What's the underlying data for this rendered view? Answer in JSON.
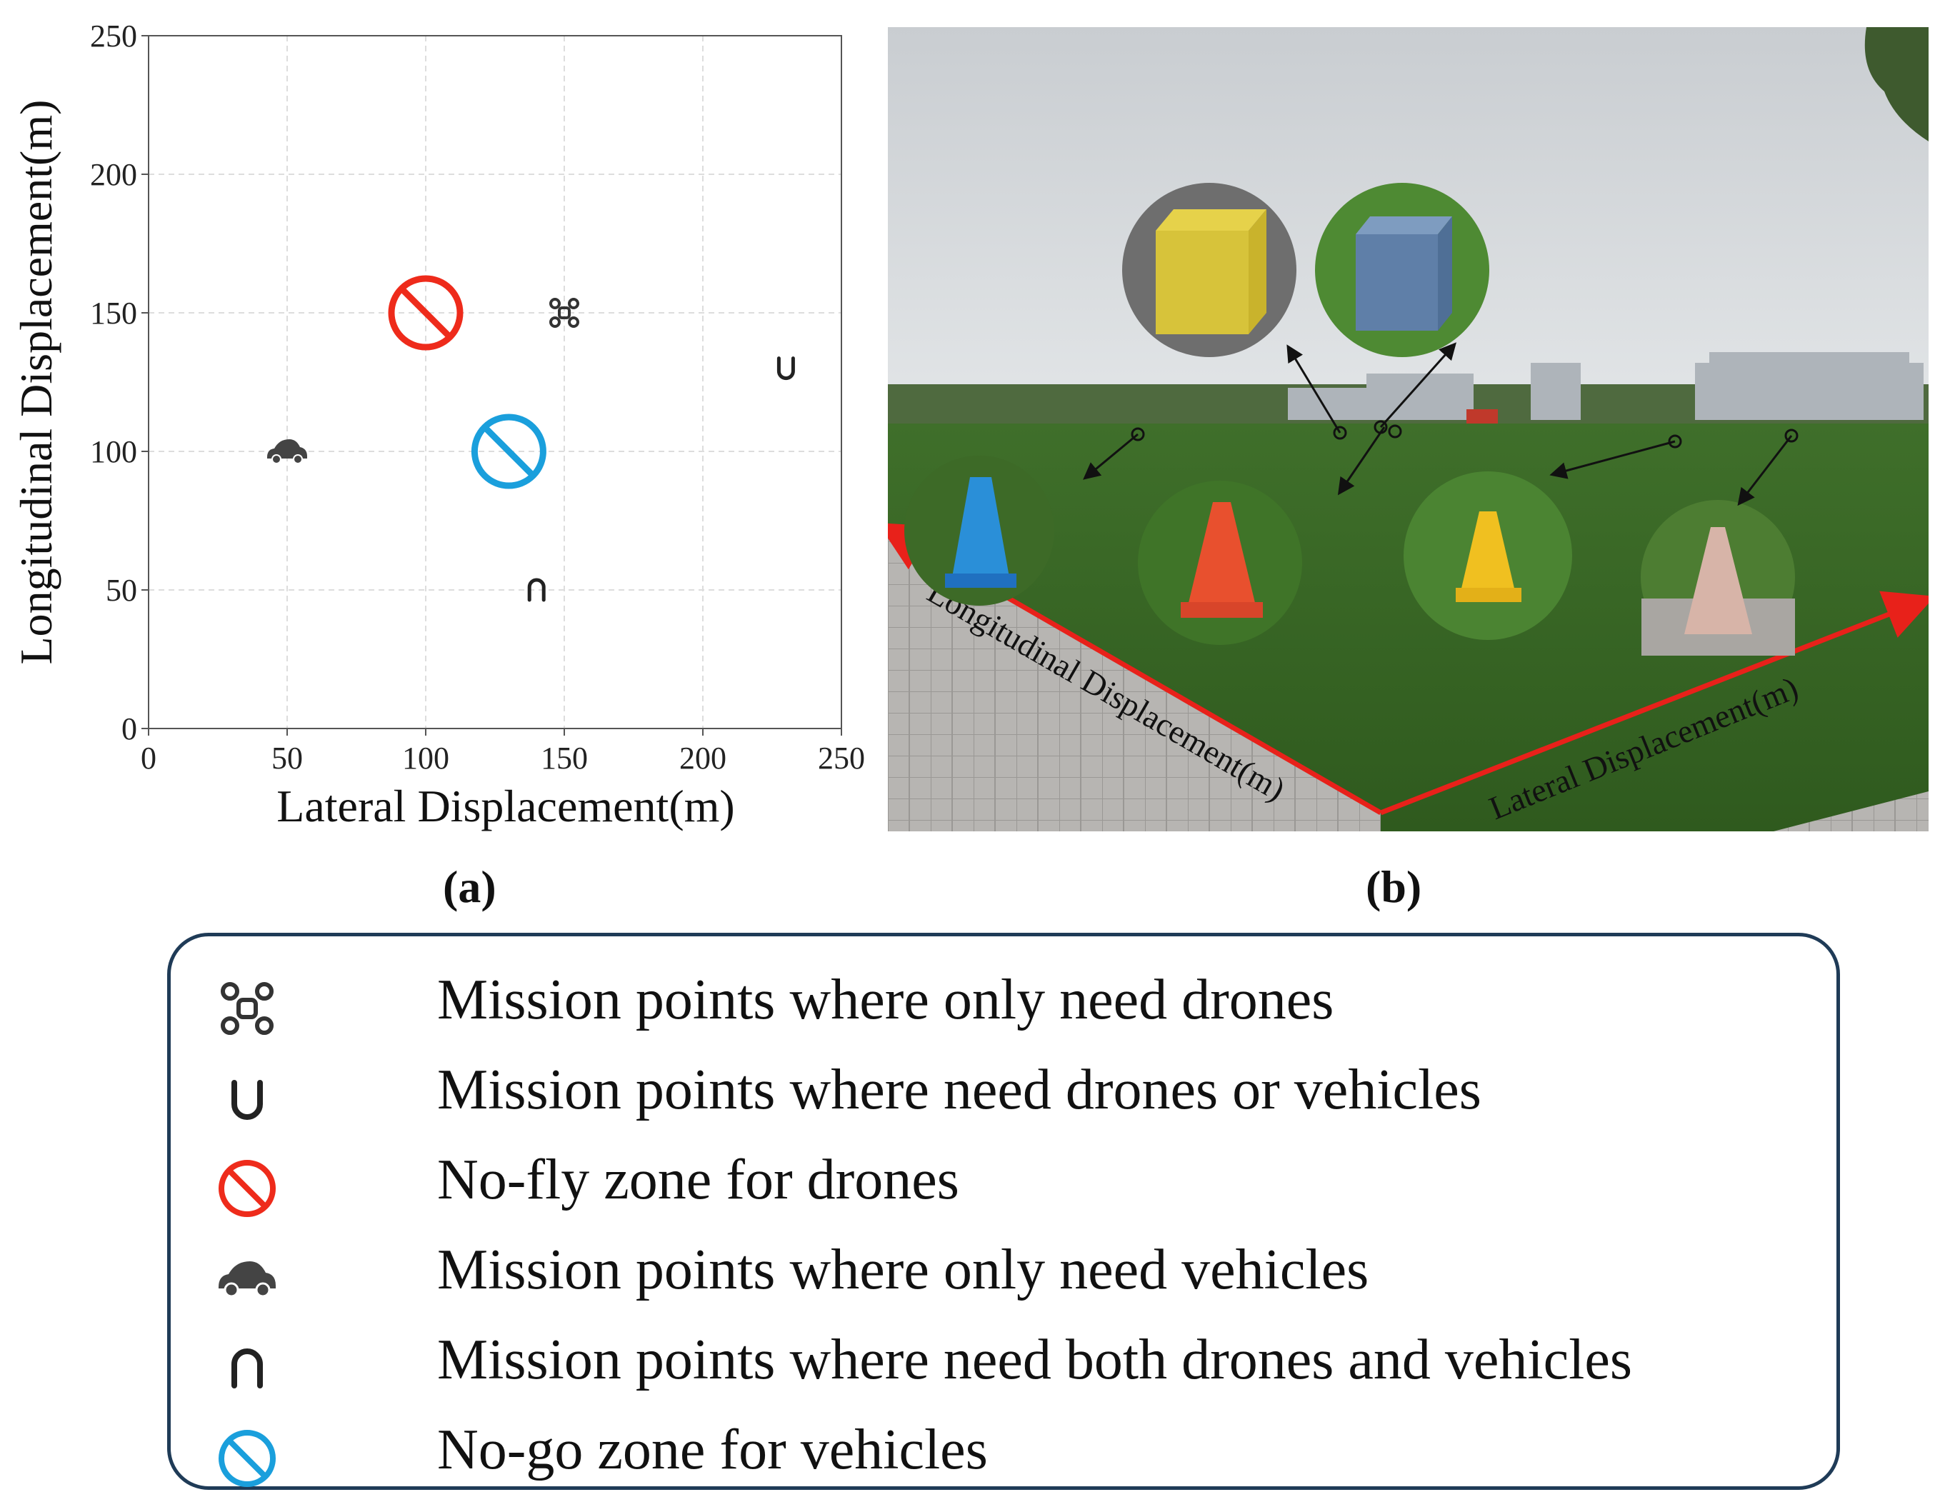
{
  "chart_data": {
    "type": "scatter",
    "xlabel": "Lateral Displacement(m)",
    "ylabel": "Longitudinal Displacement(m)",
    "xlim": [
      0,
      250
    ],
    "ylim": [
      0,
      250
    ],
    "xticks": [
      0,
      50,
      100,
      150,
      200,
      250
    ],
    "yticks": [
      0,
      50,
      100,
      150,
      200,
      250
    ],
    "grid": true,
    "points": [
      {
        "category": "drone_only",
        "x": 150,
        "y": 150,
        "marker": "drone-icon"
      },
      {
        "category": "drone_or_vehicle",
        "x": 230,
        "y": 130,
        "marker": "cup-icon"
      },
      {
        "category": "vehicle_only",
        "x": 50,
        "y": 100,
        "marker": "car-icon"
      },
      {
        "category": "drone_and_vehicle",
        "x": 140,
        "y": 50,
        "marker": "cap-icon"
      }
    ],
    "zones": [
      {
        "category": "no_fly",
        "x": 100,
        "y": 150,
        "color": "#ee2b1b",
        "marker": "no-fly-icon"
      },
      {
        "category": "no_go",
        "x": 130,
        "y": 100,
        "color": "#1a9fdc",
        "marker": "no-go-icon"
      }
    ]
  },
  "captions": {
    "a": "(a)",
    "b": "(b)"
  },
  "photo": {
    "longitudinal_label": "Longitudinal Displacement(m)",
    "lateral_label": "Lateral Displacement(m)",
    "axis_color": "#e8211a"
  },
  "legend": {
    "items": [
      {
        "icon": "drone-icon",
        "text": "Mission points where only need drones"
      },
      {
        "icon": "cup-icon",
        "text": "Mission points where need drones or vehicles"
      },
      {
        "icon": "no-fly-icon",
        "text": "No-fly zone for drones"
      },
      {
        "icon": "car-icon",
        "text": "Mission points where only need vehicles"
      },
      {
        "icon": "cap-icon",
        "text": "Mission points where need both drones and vehicles"
      },
      {
        "icon": "no-go-icon",
        "text": "No-go zone for vehicles"
      }
    ]
  }
}
